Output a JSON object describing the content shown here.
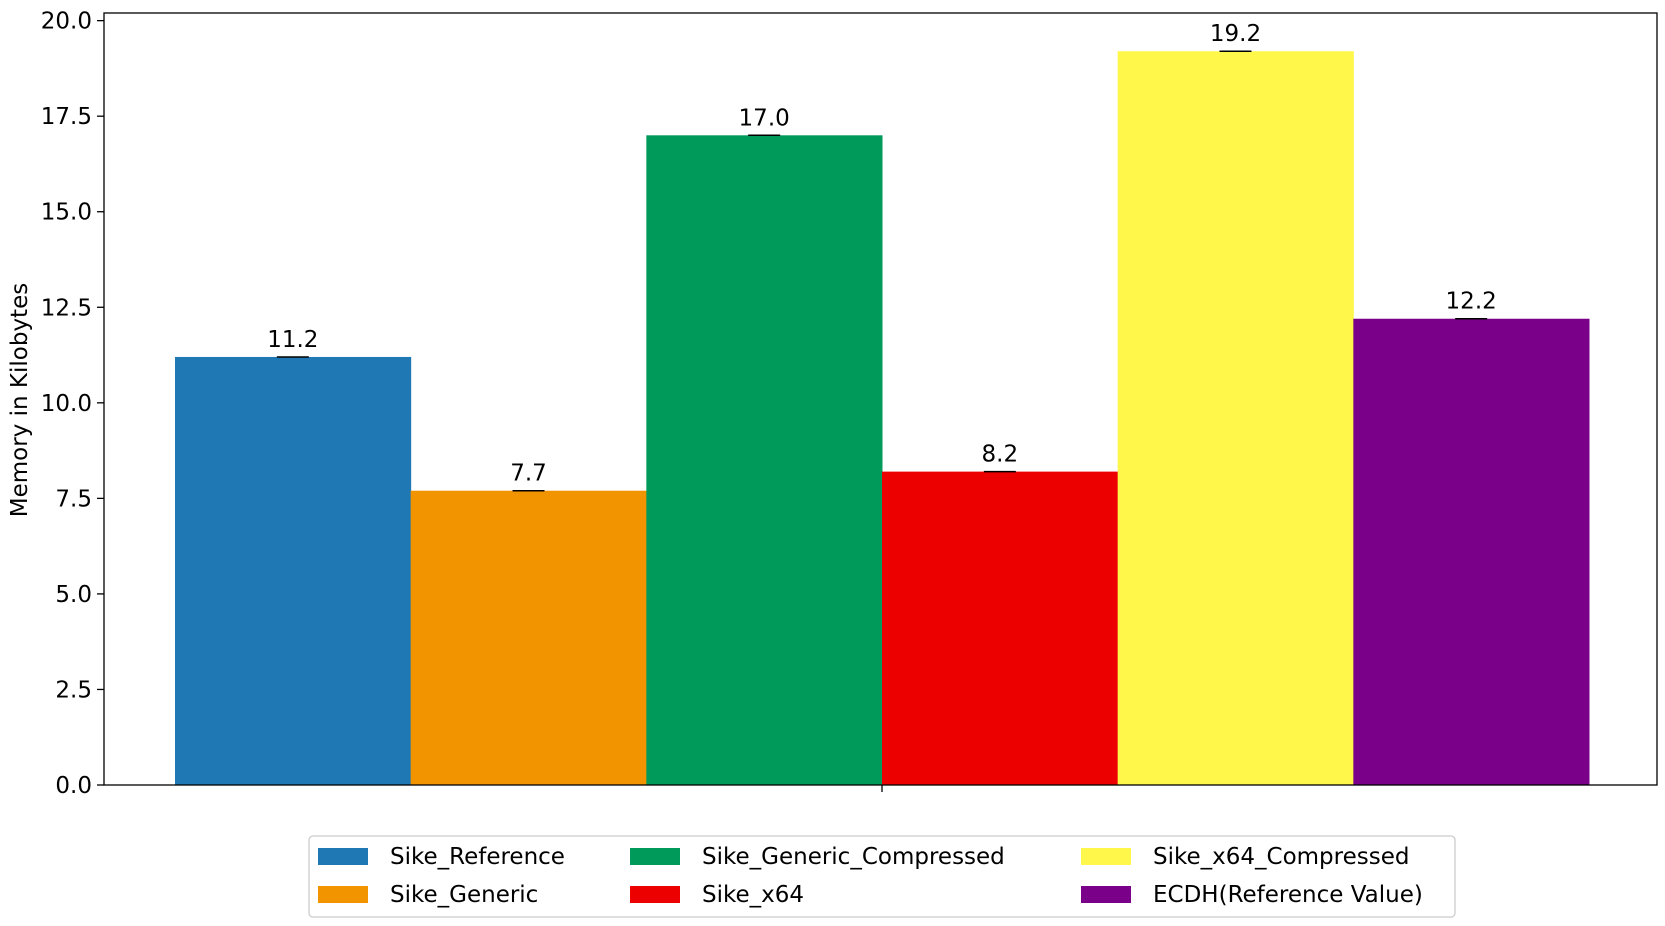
{
  "chart_data": {
    "type": "bar",
    "title": "",
    "xlabel": "",
    "ylabel": "Memory in Kilobytes",
    "ylim": [
      0,
      20.2
    ],
    "yticks": [
      "0.0",
      "2.5",
      "5.0",
      "7.5",
      "10.0",
      "12.5",
      "15.0",
      "17.5",
      "20.0"
    ],
    "categories": [
      ""
    ],
    "grid": false,
    "legend_position": "bottom-center",
    "series": [
      {
        "name": "Sike_Reference",
        "value": 11.2,
        "label": "11.2",
        "color": "#1f77b4"
      },
      {
        "name": "Sike_Generic",
        "value": 7.7,
        "label": "7.7",
        "color": "#f29400"
      },
      {
        "name": "Sike_Generic_Compressed",
        "value": 17.0,
        "label": "17.0",
        "color": "#009a5b"
      },
      {
        "name": "Sike_x64",
        "value": 8.2,
        "label": "8.2",
        "color": "#ec0000"
      },
      {
        "name": "Sike_x64_Compressed",
        "value": 19.2,
        "label": "19.2",
        "color": "#fff84a"
      },
      {
        "name": "ECDH(Reference Value)",
        "value": 12.2,
        "label": "12.2",
        "color": "#7a008a"
      }
    ]
  }
}
